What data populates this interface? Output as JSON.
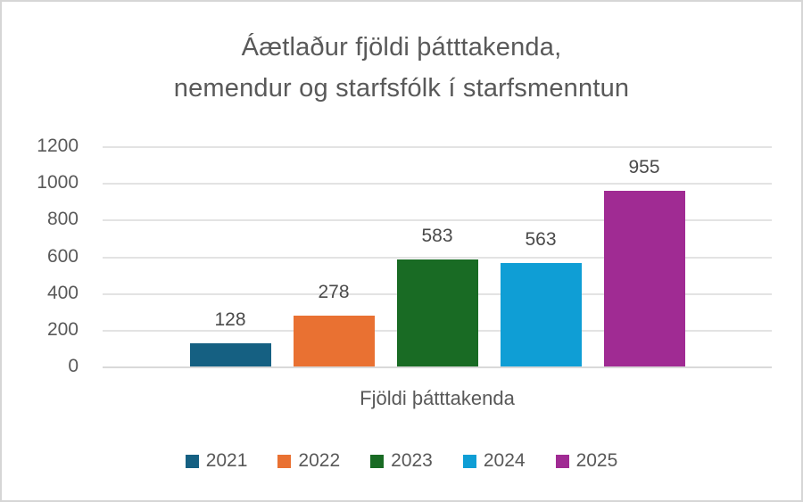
{
  "chart_data": {
    "type": "bar",
    "title": "Áætlaður fjöldi þátttakenda, nemendur og starfsfólk í starfsmenntun",
    "title_lines": [
      "Áætlaður fjöldi þátttakenda,",
      "nemendur og starfsfólk í starfsmenntun"
    ],
    "categories": [
      "Fjöldi þátttakenda"
    ],
    "series": [
      {
        "name": "2021",
        "values": [
          128
        ],
        "color": "#156082"
      },
      {
        "name": "2022",
        "values": [
          278
        ],
        "color": "#E97132"
      },
      {
        "name": "2023",
        "values": [
          583
        ],
        "color": "#196B24"
      },
      {
        "name": "2024",
        "values": [
          563
        ],
        "color": "#0F9ED5"
      },
      {
        "name": "2025",
        "values": [
          955
        ],
        "color": "#A02B93"
      }
    ],
    "xlabel": "Fjöldi þátttakenda",
    "ylabel": "",
    "ylim": [
      0,
      1200
    ],
    "yticks": [
      0,
      200,
      400,
      600,
      800,
      1000,
      1200
    ],
    "grid": true,
    "data_labels": true,
    "legend_position": "bottom",
    "colors": {
      "text": "#595959",
      "data_label": "#4a4a4a",
      "gridline": "#e3e3e3",
      "frame_border": "#d6d6d6",
      "background": "#ffffff"
    }
  }
}
